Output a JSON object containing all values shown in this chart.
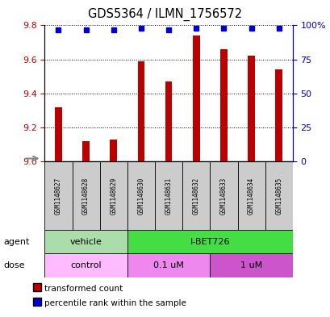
{
  "title": "GDS5364 / ILMN_1756572",
  "samples": [
    "GSM1148627",
    "GSM1148628",
    "GSM1148629",
    "GSM1148630",
    "GSM1148631",
    "GSM1148632",
    "GSM1148633",
    "GSM1148634",
    "GSM1148635"
  ],
  "transformed_counts": [
    9.32,
    9.12,
    9.13,
    9.59,
    9.47,
    9.74,
    9.66,
    9.62,
    9.54
  ],
  "percentile_ranks": [
    97,
    97,
    97,
    98,
    97,
    98,
    98,
    98,
    98
  ],
  "ylim_left": [
    9.0,
    9.8
  ],
  "ylim_right": [
    0,
    100
  ],
  "yticks_left": [
    9.0,
    9.2,
    9.4,
    9.6,
    9.8
  ],
  "yticks_right": [
    0,
    25,
    50,
    75,
    100
  ],
  "bar_color": "#bb0000",
  "dot_color": "#0000cc",
  "bar_bottom": 9.0,
  "agent_groups": [
    {
      "label": "vehicle",
      "start": 0,
      "end": 3,
      "color": "#aaddaa"
    },
    {
      "label": "I-BET726",
      "start": 3,
      "end": 9,
      "color": "#44dd44"
    }
  ],
  "dose_groups": [
    {
      "label": "control",
      "start": 0,
      "end": 3,
      "color": "#ffbbff"
    },
    {
      "label": "0.1 uM",
      "start": 3,
      "end": 6,
      "color": "#ee88ee"
    },
    {
      "label": "1 uM",
      "start": 6,
      "end": 9,
      "color": "#cc55cc"
    }
  ],
  "legend_items": [
    {
      "label": "transformed count",
      "color": "#bb0000"
    },
    {
      "label": "percentile rank within the sample",
      "color": "#0000cc"
    }
  ],
  "left_label_color": "#bb0000",
  "right_label_color": "#0000cc"
}
